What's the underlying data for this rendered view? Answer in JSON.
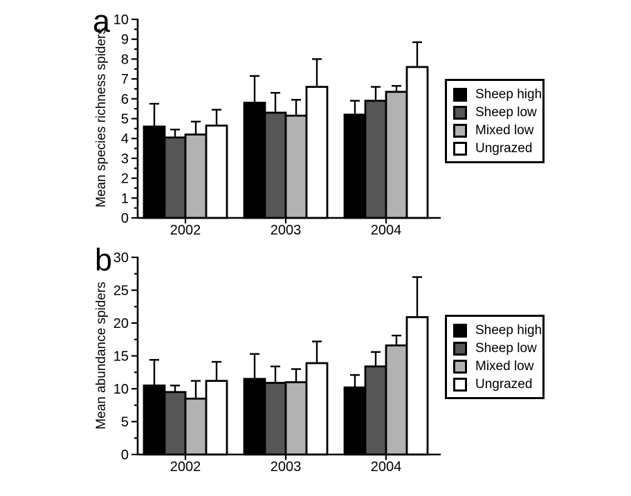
{
  "figure": {
    "background": "#ffffff",
    "axis_color": "#000000",
    "text_color": "#000000"
  },
  "chart_data": [
    {
      "type": "bar",
      "panel": "a",
      "title": "",
      "xlabel": "",
      "ylabel": "Mean species richness spiders",
      "categories": [
        "2002",
        "2003",
        "2004"
      ],
      "ylim": [
        0,
        10
      ],
      "ytick_step": 1,
      "minor_tick_step": 0.5,
      "grid": false,
      "error_bars": "upper",
      "legend_position": "right",
      "series": [
        {
          "name": "Sheep high",
          "color": "#000000",
          "values": [
            4.6,
            5.8,
            5.2
          ],
          "errors": [
            1.15,
            1.35,
            0.7
          ]
        },
        {
          "name": "Sheep low",
          "color": "#565656",
          "values": [
            4.05,
            5.3,
            5.9
          ],
          "errors": [
            0.4,
            1.0,
            0.7
          ]
        },
        {
          "name": "Mixed low",
          "color": "#b2b2b2",
          "values": [
            4.2,
            5.15,
            6.35
          ],
          "errors": [
            0.65,
            0.8,
            0.3
          ]
        },
        {
          "name": "Ungrazed",
          "color": "#ffffff",
          "values": [
            4.65,
            6.6,
            7.6
          ],
          "errors": [
            0.8,
            1.4,
            1.25
          ]
        }
      ]
    },
    {
      "type": "bar",
      "panel": "b",
      "title": "",
      "xlabel": "",
      "ylabel": "Mean abundance spiders",
      "categories": [
        "2002",
        "2003",
        "2004"
      ],
      "ylim": [
        0,
        30
      ],
      "ytick_step": 5,
      "minor_tick_step": 2.5,
      "grid": false,
      "error_bars": "upper",
      "legend_position": "right",
      "series": [
        {
          "name": "Sheep high",
          "color": "#000000",
          "values": [
            10.5,
            11.5,
            10.2
          ],
          "errors": [
            3.9,
            3.8,
            1.9
          ]
        },
        {
          "name": "Sheep low",
          "color": "#565656",
          "values": [
            9.5,
            10.9,
            13.4
          ],
          "errors": [
            1.0,
            2.5,
            2.2
          ]
        },
        {
          "name": "Mixed low",
          "color": "#b2b2b2",
          "values": [
            8.5,
            11.0,
            16.6
          ],
          "errors": [
            2.7,
            2.0,
            1.5
          ]
        },
        {
          "name": "Ungrazed",
          "color": "#ffffff",
          "values": [
            11.2,
            13.9,
            20.9
          ],
          "errors": [
            2.9,
            3.3,
            6.1
          ]
        }
      ]
    }
  ]
}
